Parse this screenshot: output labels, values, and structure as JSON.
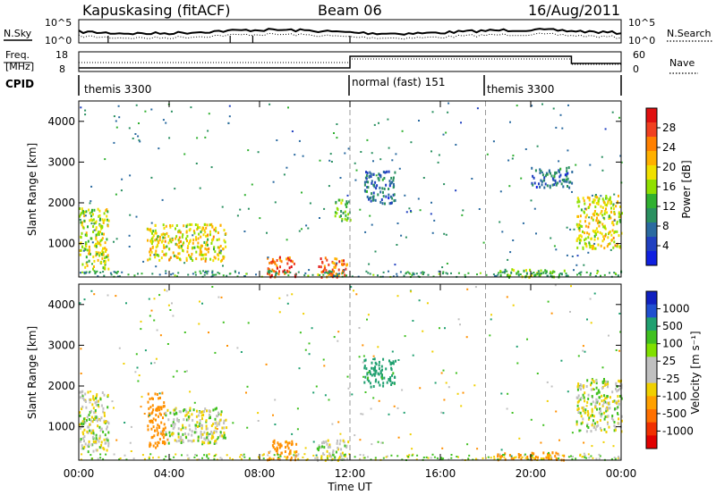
{
  "header": {
    "station": "Kapuskasing (fitACF)",
    "beam": "Beam 06",
    "date": "16/Aug/2011"
  },
  "top_strip": {
    "nsky_label": "N.Sky",
    "nsearch_label": "N.Search",
    "left_ticks": [
      "10^5",
      "10^0"
    ],
    "right_ticks": [
      "10^5",
      "10^0"
    ],
    "freq_label_1": "Freq.",
    "freq_label_2": "[MHz]",
    "freq_ticks": [
      "18",
      "8"
    ],
    "nave_label": "Nave",
    "nave_ticks": [
      "60",
      "0"
    ],
    "cpid_label": "CPID",
    "cpid_segments": [
      {
        "label": "themis 3300",
        "start_hour": 0,
        "end_hour": 12
      },
      {
        "label": "normal (fast) 151",
        "start_hour": 12,
        "end_hour": 18
      },
      {
        "label": "themis 3300",
        "start_hour": 18,
        "end_hour": 24
      }
    ]
  },
  "panels": {
    "power": {
      "ylabel": "Slant Range [km]",
      "cbar_label": "Power [dB]",
      "cbar_ticks": [
        "28",
        "24",
        "20",
        "16",
        "12",
        "8",
        "4"
      ],
      "cbar_colors": [
        "#e01010",
        "#f04020",
        "#ff8000",
        "#ffb000",
        "#f0e000",
        "#90e000",
        "#30b030",
        "#2a9060",
        "#2a6aa0",
        "#2040c0",
        "#1020e0"
      ]
    },
    "velocity": {
      "ylabel": "Slant Range [km]",
      "cbar_label": "Velocity [m s⁻¹]",
      "cbar_ticks": [
        "1000",
        "500",
        "100",
        "25",
        "-25",
        "-100",
        "-500",
        "-1000"
      ],
      "cbar_colors": [
        "#1020c0",
        "#2050d0",
        "#20a070",
        "#40c020",
        "#80e000",
        "#c0c0c0",
        "#c0c0c0",
        "#f0d000",
        "#ffa000",
        "#ff7000",
        "#f03000",
        "#e00000"
      ]
    }
  },
  "xaxis": {
    "label": "Time UT",
    "ticks": [
      "00:00",
      "04:00",
      "08:00",
      "12:00",
      "16:00",
      "20:00",
      "00:00"
    ]
  },
  "chart_data": [
    {
      "type": "heatmap",
      "title": "Kapuskasing (fitACF) Beam 06 16/Aug/2011",
      "quantity": "Power",
      "units": "dB",
      "xlabel": "Time UT",
      "ylabel": "Slant Range [km]",
      "x_range_hours": [
        0,
        24
      ],
      "ylim": [
        180,
        4500
      ],
      "yticks": [
        1000,
        2000,
        3000,
        4000
      ],
      "colorbar_range": [
        0,
        30
      ],
      "echo_regions": [
        {
          "t0": 0.0,
          "t1": 1.3,
          "r0": 400,
          "r1": 1900,
          "value": 16
        },
        {
          "t0": 3.0,
          "t1": 6.5,
          "r0": 600,
          "r1": 1500,
          "value": 18
        },
        {
          "t0": 8.3,
          "t1": 9.6,
          "r0": 200,
          "r1": 700,
          "value": 26
        },
        {
          "t0": 10.5,
          "t1": 11.9,
          "r0": 200,
          "r1": 700,
          "value": 24
        },
        {
          "t0": 11.3,
          "t1": 12.0,
          "r0": 1600,
          "r1": 2100,
          "value": 12
        },
        {
          "t0": 12.6,
          "t1": 14.0,
          "r0": 2000,
          "r1": 2800,
          "value": 6
        },
        {
          "t0": 18.5,
          "t1": 21.5,
          "r0": 200,
          "r1": 400,
          "value": 14
        },
        {
          "t0": 20.0,
          "t1": 21.8,
          "r0": 2400,
          "r1": 2900,
          "value": 6
        },
        {
          "t0": 22.0,
          "t1": 24.0,
          "r0": 900,
          "r1": 2200,
          "value": 18
        }
      ]
    },
    {
      "type": "heatmap",
      "quantity": "Velocity",
      "units": "m s-1",
      "xlabel": "Time UT",
      "ylabel": "Slant Range [km]",
      "x_range_hours": [
        0,
        24
      ],
      "ylim": [
        180,
        4500
      ],
      "yticks": [
        1000,
        2000,
        3000,
        4000
      ],
      "colorbar_levels": [
        1000,
        500,
        100,
        25,
        -25,
        -100,
        -500,
        -1000
      ],
      "echo_regions": [
        {
          "t0": 0.0,
          "t1": 1.3,
          "r0": 400,
          "r1": 1900,
          "value": 0
        },
        {
          "t0": 3.0,
          "t1": 3.8,
          "r0": 500,
          "r1": 1900,
          "value": -300
        },
        {
          "t0": 3.8,
          "t1": 6.5,
          "r0": 600,
          "r1": 1500,
          "value": 0
        },
        {
          "t0": 8.3,
          "t1": 9.6,
          "r0": 200,
          "r1": 700,
          "value": -150
        },
        {
          "t0": 10.5,
          "t1": 11.9,
          "r0": 200,
          "r1": 700,
          "value": 0
        },
        {
          "t0": 12.6,
          "t1": 14.0,
          "r0": 2000,
          "r1": 2700,
          "value": 150
        },
        {
          "t0": 18.5,
          "t1": 21.5,
          "r0": 200,
          "r1": 400,
          "value": -200
        },
        {
          "t0": 22.0,
          "t1": 24.0,
          "r0": 900,
          "r1": 2200,
          "value": 0
        }
      ]
    }
  ]
}
